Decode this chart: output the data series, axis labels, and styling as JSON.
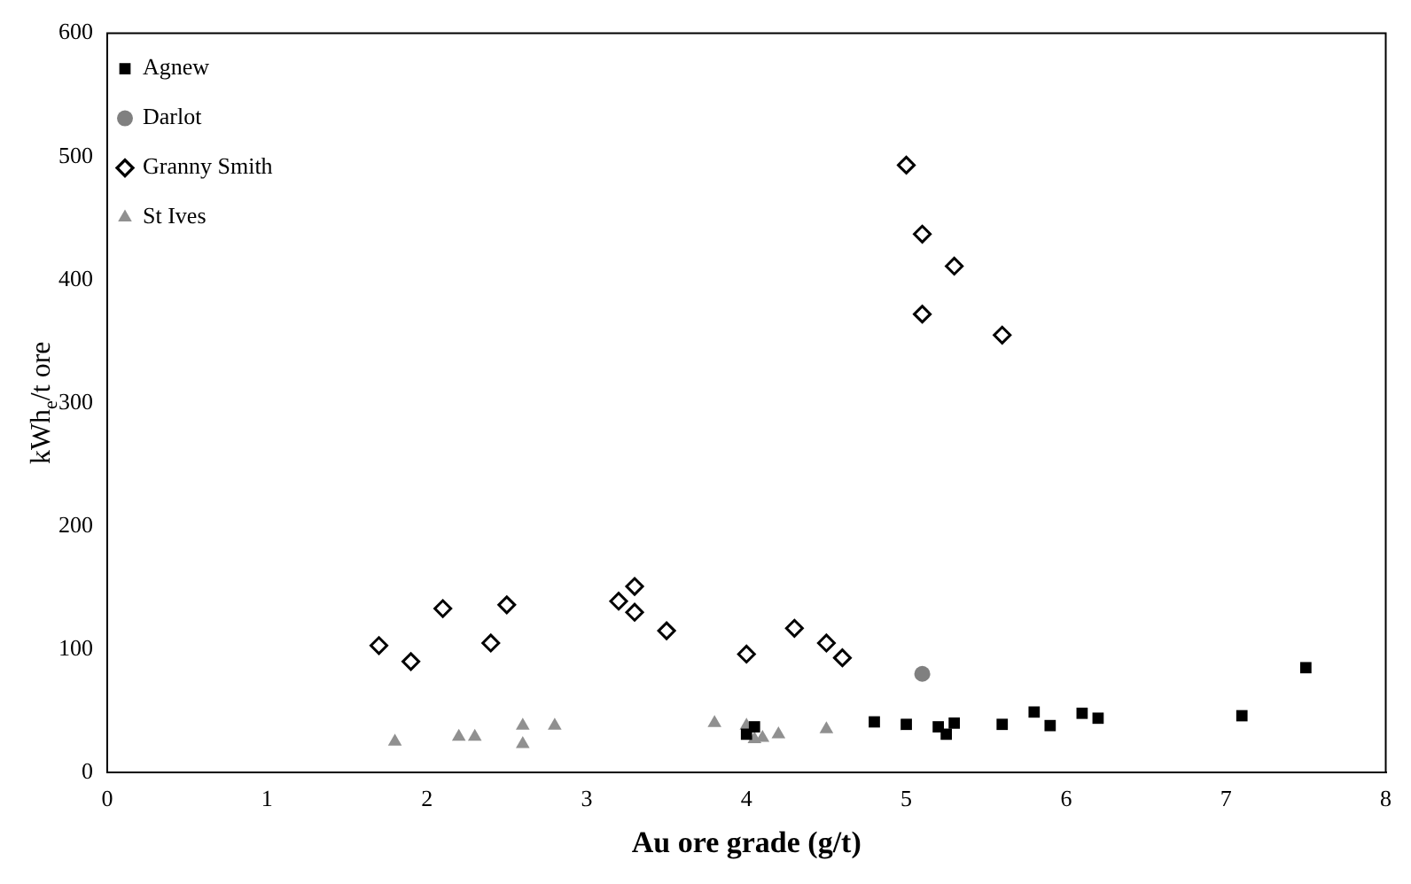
{
  "chart_data": {
    "type": "scatter",
    "xlabel": "Au ore grade (g/t)",
    "ylabel": "kWh$_{e}$/t ore",
    "xlim": [
      0,
      8
    ],
    "xticks": [
      0,
      1,
      2,
      3,
      4,
      5,
      6,
      7,
      8
    ],
    "ylim": [
      0,
      600
    ],
    "yticks": [
      0,
      100,
      200,
      300,
      400,
      500,
      600
    ],
    "grid": false,
    "legend": "top left",
    "series": [
      {
        "name": "Agnew",
        "color": "#000000",
        "marker": "square",
        "x": [
          4.0,
          4.05,
          4.8,
          5.0,
          5.2,
          5.25,
          5.3,
          5.6,
          5.8,
          5.9,
          6.1,
          6.2,
          7.1,
          7.5
        ],
        "values": [
          31,
          37,
          41,
          39,
          37,
          31,
          40,
          39,
          49,
          38,
          48,
          44,
          46,
          85
        ]
      },
      {
        "name": "Darlot",
        "color": "#808080",
        "marker": "circle",
        "x": [
          5.1
        ],
        "values": [
          80
        ]
      },
      {
        "name": "Granny Smith",
        "color": "#000000",
        "marker": "diamond",
        "x": [
          1.7,
          1.9,
          2.1,
          2.4,
          2.5,
          3.2,
          3.3,
          3.3,
          3.5,
          4.0,
          4.3,
          4.5,
          4.6,
          5.0,
          5.1,
          5.3,
          5.1,
          5.6
        ],
        "values": [
          103,
          90,
          133,
          105,
          136,
          139,
          151,
          130,
          115,
          96,
          117,
          105,
          93,
          493,
          437,
          411,
          372,
          355
        ]
      },
      {
        "name": "St Ives",
        "color": "#909090",
        "marker": "triangle",
        "x": [
          1.8,
          2.2,
          2.3,
          2.6,
          2.6,
          2.8,
          3.8,
          4.0,
          4.1,
          4.05,
          4.2,
          4.5
        ],
        "values": [
          25,
          29,
          29,
          38,
          23,
          38,
          40,
          38,
          28,
          27,
          31,
          35
        ]
      }
    ]
  }
}
